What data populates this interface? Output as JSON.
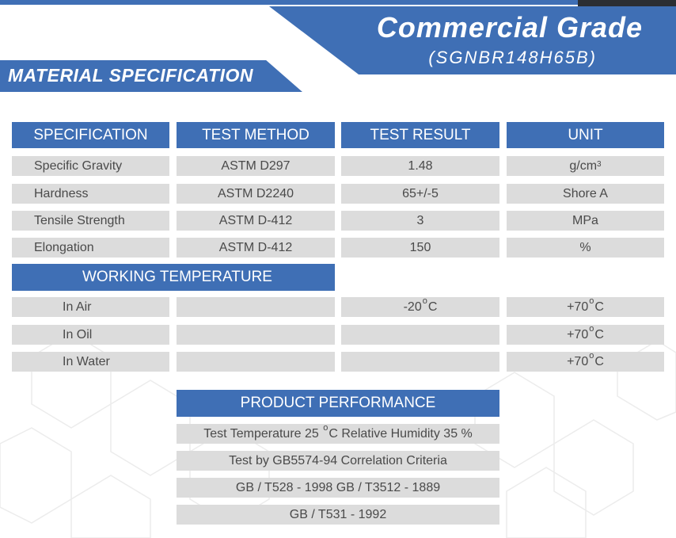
{
  "header": {
    "grade_title": "Commercial Grade",
    "product_code": "(SGNBR148H65B)",
    "section_label": "MATERIAL SPECIFICATION"
  },
  "spec_table": {
    "columns": [
      "SPECIFICATION",
      "TEST METHOD",
      "TEST RESULT",
      "UNIT"
    ],
    "rows": [
      {
        "spec": "Specific Gravity",
        "method": "ASTM D297",
        "result": "1.48",
        "unit": "g/cm",
        "unit_sup": "3"
      },
      {
        "spec": "Hardness",
        "method": "ASTM D2240",
        "result": "65+/-5",
        "unit": "Shore A"
      },
      {
        "spec": "Tensile Strength",
        "method": "ASTM D-412",
        "result": "3",
        "unit": "MPa"
      },
      {
        "spec": "Elongation",
        "method": "ASTM D-412",
        "result": "150",
        "unit": "%"
      }
    ]
  },
  "working_temperature": {
    "title": "WORKING TEMPERATURE",
    "degree_symbol": "o",
    "unit_letter": "C",
    "rows": [
      {
        "label": "In Air",
        "min": "-20",
        "max": "+70"
      },
      {
        "label": "In Oil",
        "min": "",
        "max": "+70"
      },
      {
        "label": "In Water",
        "min": "",
        "max": "+70"
      }
    ]
  },
  "product_performance": {
    "title": "PRODUCT PERFORMANCE",
    "line1_a": "Test Temperature 25",
    "line1_b": "C Relative Humidity 35 %",
    "line2": "Test by GB5574-94 Correlation Criteria",
    "line3": "GB / T528 - 1998 GB / T3512 - 1889",
    "line4": "GB / T531 - 1992"
  },
  "colors": {
    "brand_blue": "#3f6fb5",
    "row_gray": "#dcdcdc",
    "text_gray": "#4a4a4a"
  }
}
